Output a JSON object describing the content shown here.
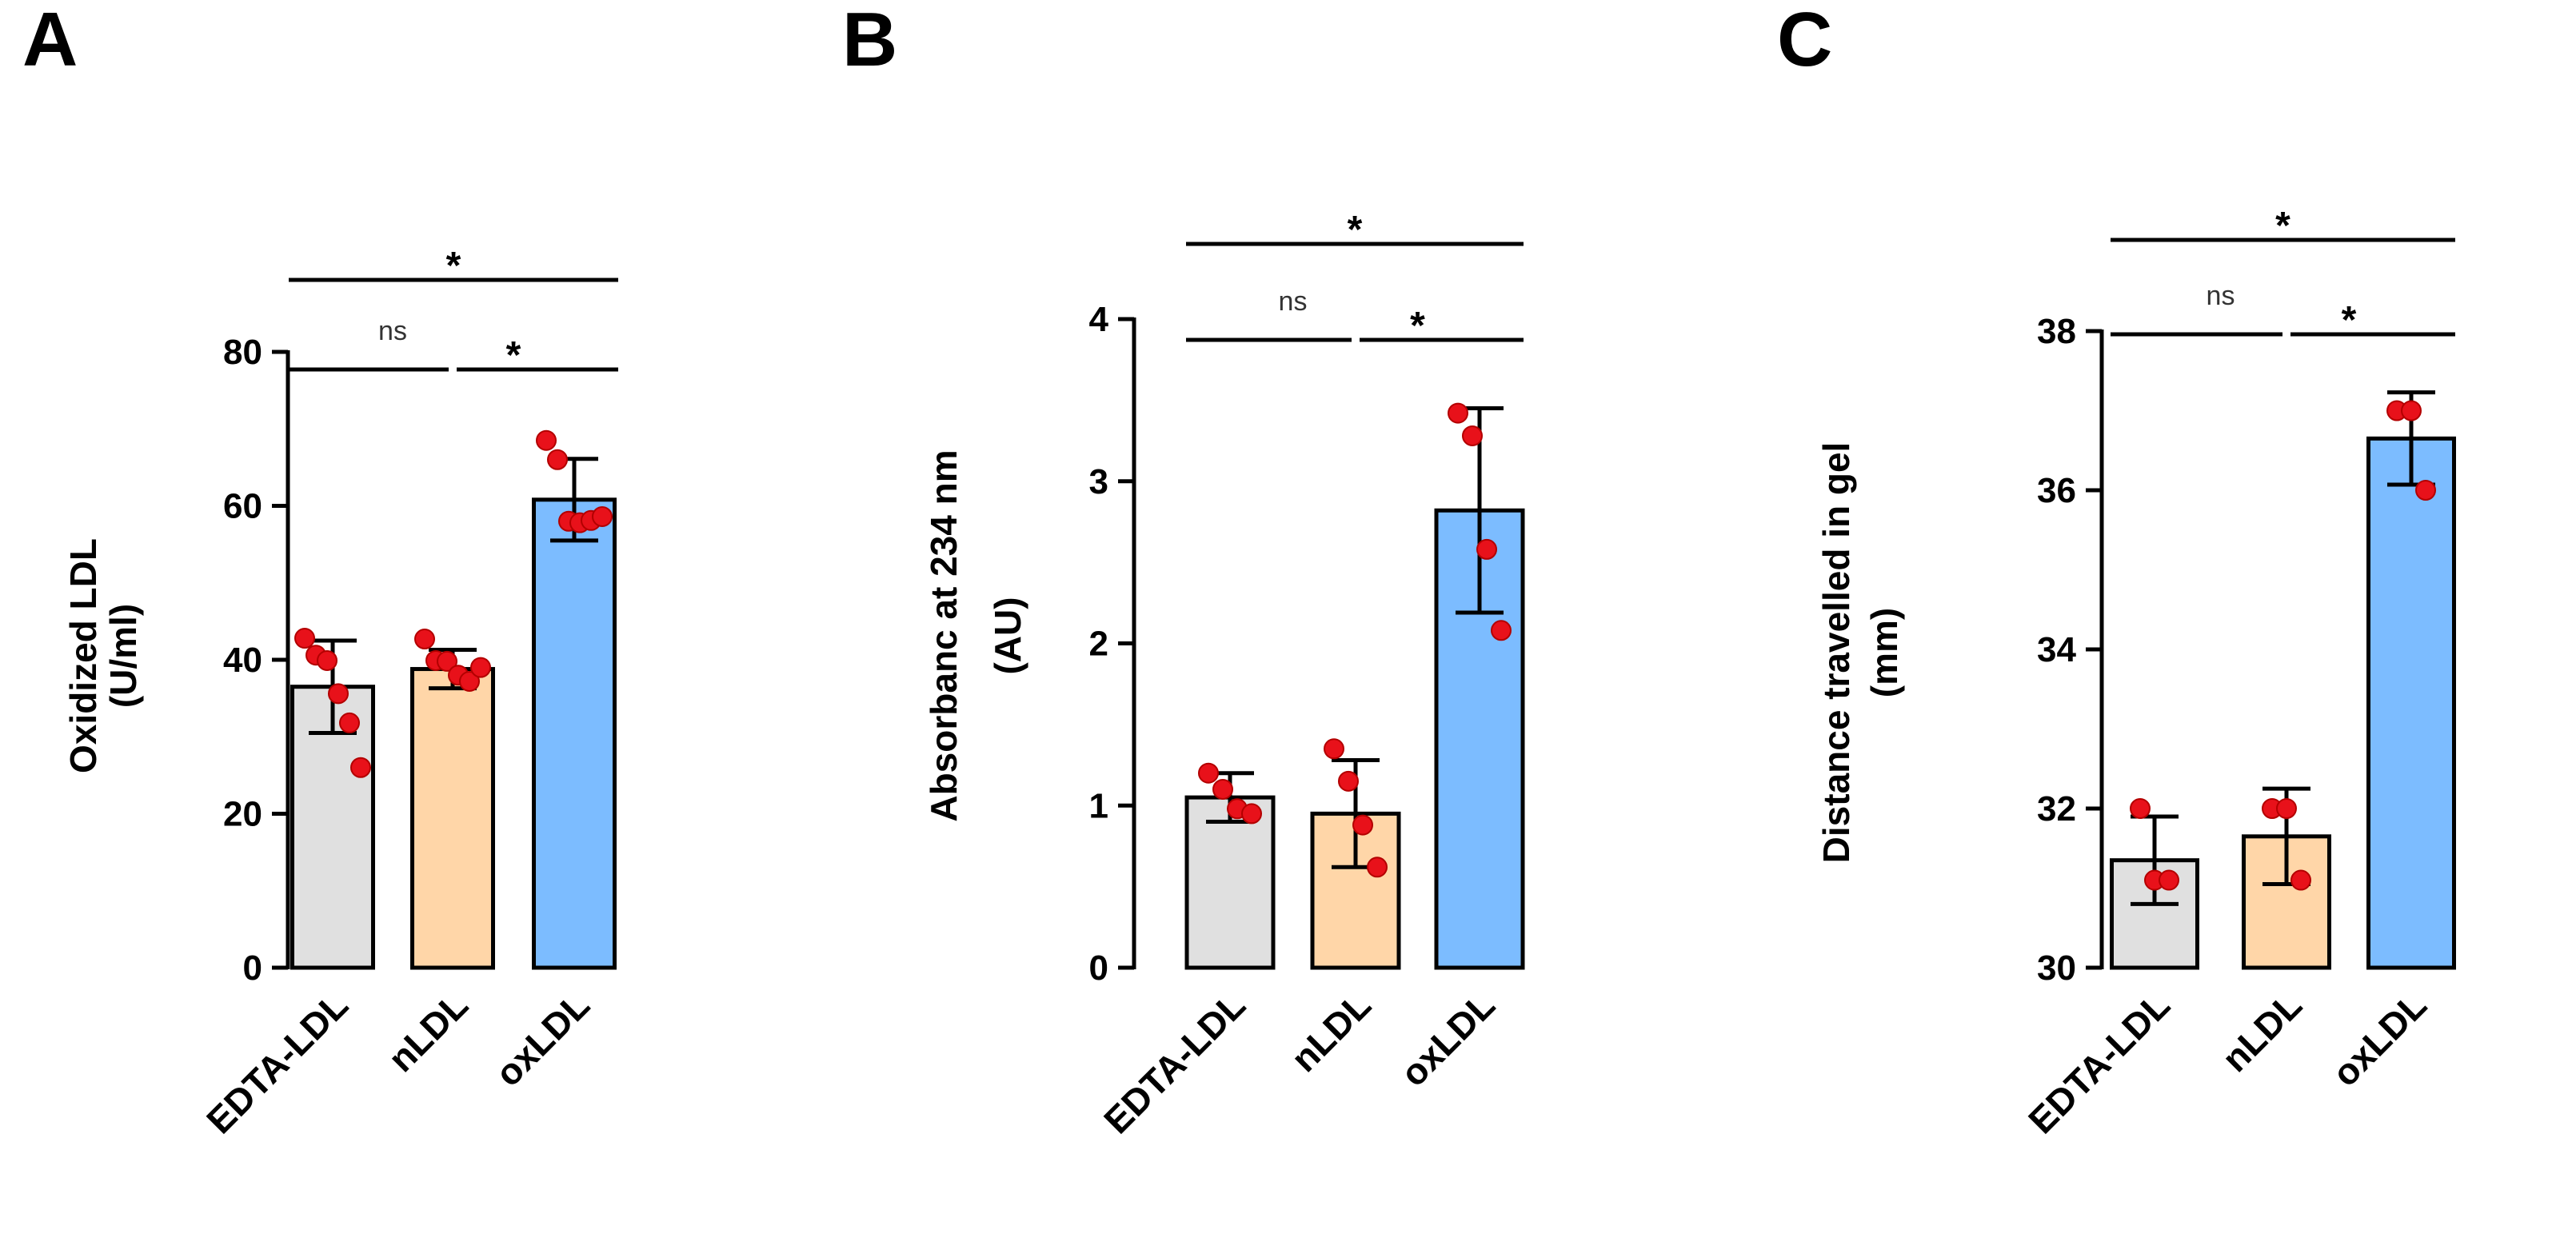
{
  "figure": {
    "colors": {
      "bars": [
        "#e0e0e0",
        "#ffd6a8",
        "#7cbcff"
      ],
      "points": "#e8111a",
      "ink": "#000000"
    }
  },
  "chart_data": [
    {
      "panel": "A",
      "type": "bar",
      "title": "",
      "xlabel": "",
      "ylabel_lines": [
        "Oxidized LDL",
        "(U/ml)"
      ],
      "categories": [
        "EDTA-LDL",
        "nLDL",
        "oxLDL"
      ],
      "values": [
        36.5,
        38.8,
        60.8
      ],
      "errors": [
        6.0,
        2.5,
        5.3
      ],
      "points": [
        [
          42.8,
          40.6,
          39.9,
          35.6,
          31.8,
          26.0
        ],
        [
          42.7,
          39.9,
          39.8,
          38.0,
          37.2,
          39.0
        ],
        [
          68.5,
          66.0,
          58.0,
          57.8,
          58.1,
          58.6
        ]
      ],
      "ylim": [
        0,
        80
      ],
      "yticks": [
        0,
        20,
        40,
        60,
        80
      ],
      "significance": [
        {
          "from": 0,
          "to": 2,
          "label": "*",
          "level": 2
        },
        {
          "from": 0,
          "to": 1,
          "label": "ns",
          "level": 1
        },
        {
          "from": 1,
          "to": 2,
          "label": "*",
          "level": 1
        }
      ]
    },
    {
      "panel": "B",
      "type": "bar",
      "title": "",
      "xlabel": "",
      "ylabel_lines": [
        "Absorbanc at 234 nm",
        "(AU)"
      ],
      "categories": [
        "EDTA-LDL",
        "nLDL",
        "oxLDL"
      ],
      "values": [
        1.05,
        0.95,
        2.82
      ],
      "errors": [
        0.15,
        0.33,
        0.63
      ],
      "points": [
        [
          1.2,
          1.1,
          0.98,
          0.95
        ],
        [
          1.35,
          1.15,
          0.88,
          0.62
        ],
        [
          3.42,
          3.28,
          2.58,
          2.08
        ]
      ],
      "ylim": [
        0,
        4
      ],
      "yticks": [
        0,
        1,
        2,
        3,
        4
      ],
      "significance": [
        {
          "from": 0,
          "to": 2,
          "label": "*",
          "level": 2
        },
        {
          "from": 0,
          "to": 1,
          "label": "ns",
          "level": 1
        },
        {
          "from": 1,
          "to": 2,
          "label": "*",
          "level": 1
        }
      ]
    },
    {
      "panel": "C",
      "type": "bar",
      "title": "",
      "xlabel": "",
      "ylabel_lines": [
        "Distance travelled in gel",
        "(mm)"
      ],
      "categories": [
        "EDTA-LDL",
        "nLDL",
        "oxLDL"
      ],
      "values": [
        31.35,
        31.65,
        36.65
      ],
      "errors": [
        0.55,
        0.6,
        0.58
      ],
      "points": [
        [
          32.0,
          31.1,
          31.1
        ],
        [
          32.0,
          32.0,
          31.1
        ],
        [
          37.0,
          37.0,
          36.0
        ]
      ],
      "ylim": [
        30,
        38
      ],
      "yticks": [
        30,
        32,
        34,
        36,
        38
      ],
      "significance": [
        {
          "from": 0,
          "to": 2,
          "label": "*",
          "level": 2
        },
        {
          "from": 0,
          "to": 1,
          "label": "ns",
          "level": 1
        },
        {
          "from": 1,
          "to": 2,
          "label": "*",
          "level": 1
        }
      ]
    }
  ]
}
